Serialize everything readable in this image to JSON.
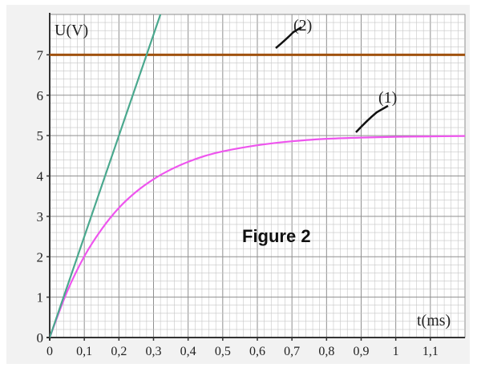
{
  "chart_data": {
    "type": "line",
    "title": "",
    "caption": "Figure 2",
    "xlabel": "t(ms)",
    "ylabel": "U(V)",
    "xlim": [
      0,
      1.2
    ],
    "ylim": [
      0,
      8
    ],
    "x_ticks": [
      "0",
      "0,1",
      "0,2",
      "0,3",
      "0,4",
      "0,5",
      "0,6",
      "0,7",
      "0,8",
      "0,9",
      "1",
      "1,1"
    ],
    "x_tick_values": [
      0,
      0.1,
      0.2,
      0.3,
      0.4,
      0.5,
      0.6,
      0.7,
      0.8,
      0.9,
      1.0,
      1.1
    ],
    "y_ticks": [
      "0",
      "1",
      "2",
      "3",
      "4",
      "5",
      "6",
      "7"
    ],
    "y_tick_values": [
      0,
      1,
      2,
      3,
      4,
      5,
      6,
      7
    ],
    "grid": true,
    "series": [
      {
        "name": "(1)",
        "color": "#ee55ee",
        "x": [
          0,
          0.05,
          0.1,
          0.15,
          0.2,
          0.25,
          0.3,
          0.35,
          0.4,
          0.45,
          0.5,
          0.6,
          0.7,
          0.8,
          0.9,
          1.0,
          1.1,
          1.2
        ],
        "y": [
          0,
          1.13,
          2.01,
          2.68,
          3.21,
          3.61,
          3.92,
          4.16,
          4.35,
          4.5,
          4.61,
          4.76,
          4.86,
          4.92,
          4.95,
          4.97,
          4.98,
          4.99
        ]
      },
      {
        "name": "(2)",
        "color": "#a0520f",
        "x": [
          0,
          1.2
        ],
        "y": [
          7,
          7
        ]
      },
      {
        "name": "",
        "color": "#4aa88e",
        "x": [
          0,
          0.32
        ],
        "y": [
          0,
          8
        ]
      }
    ]
  }
}
